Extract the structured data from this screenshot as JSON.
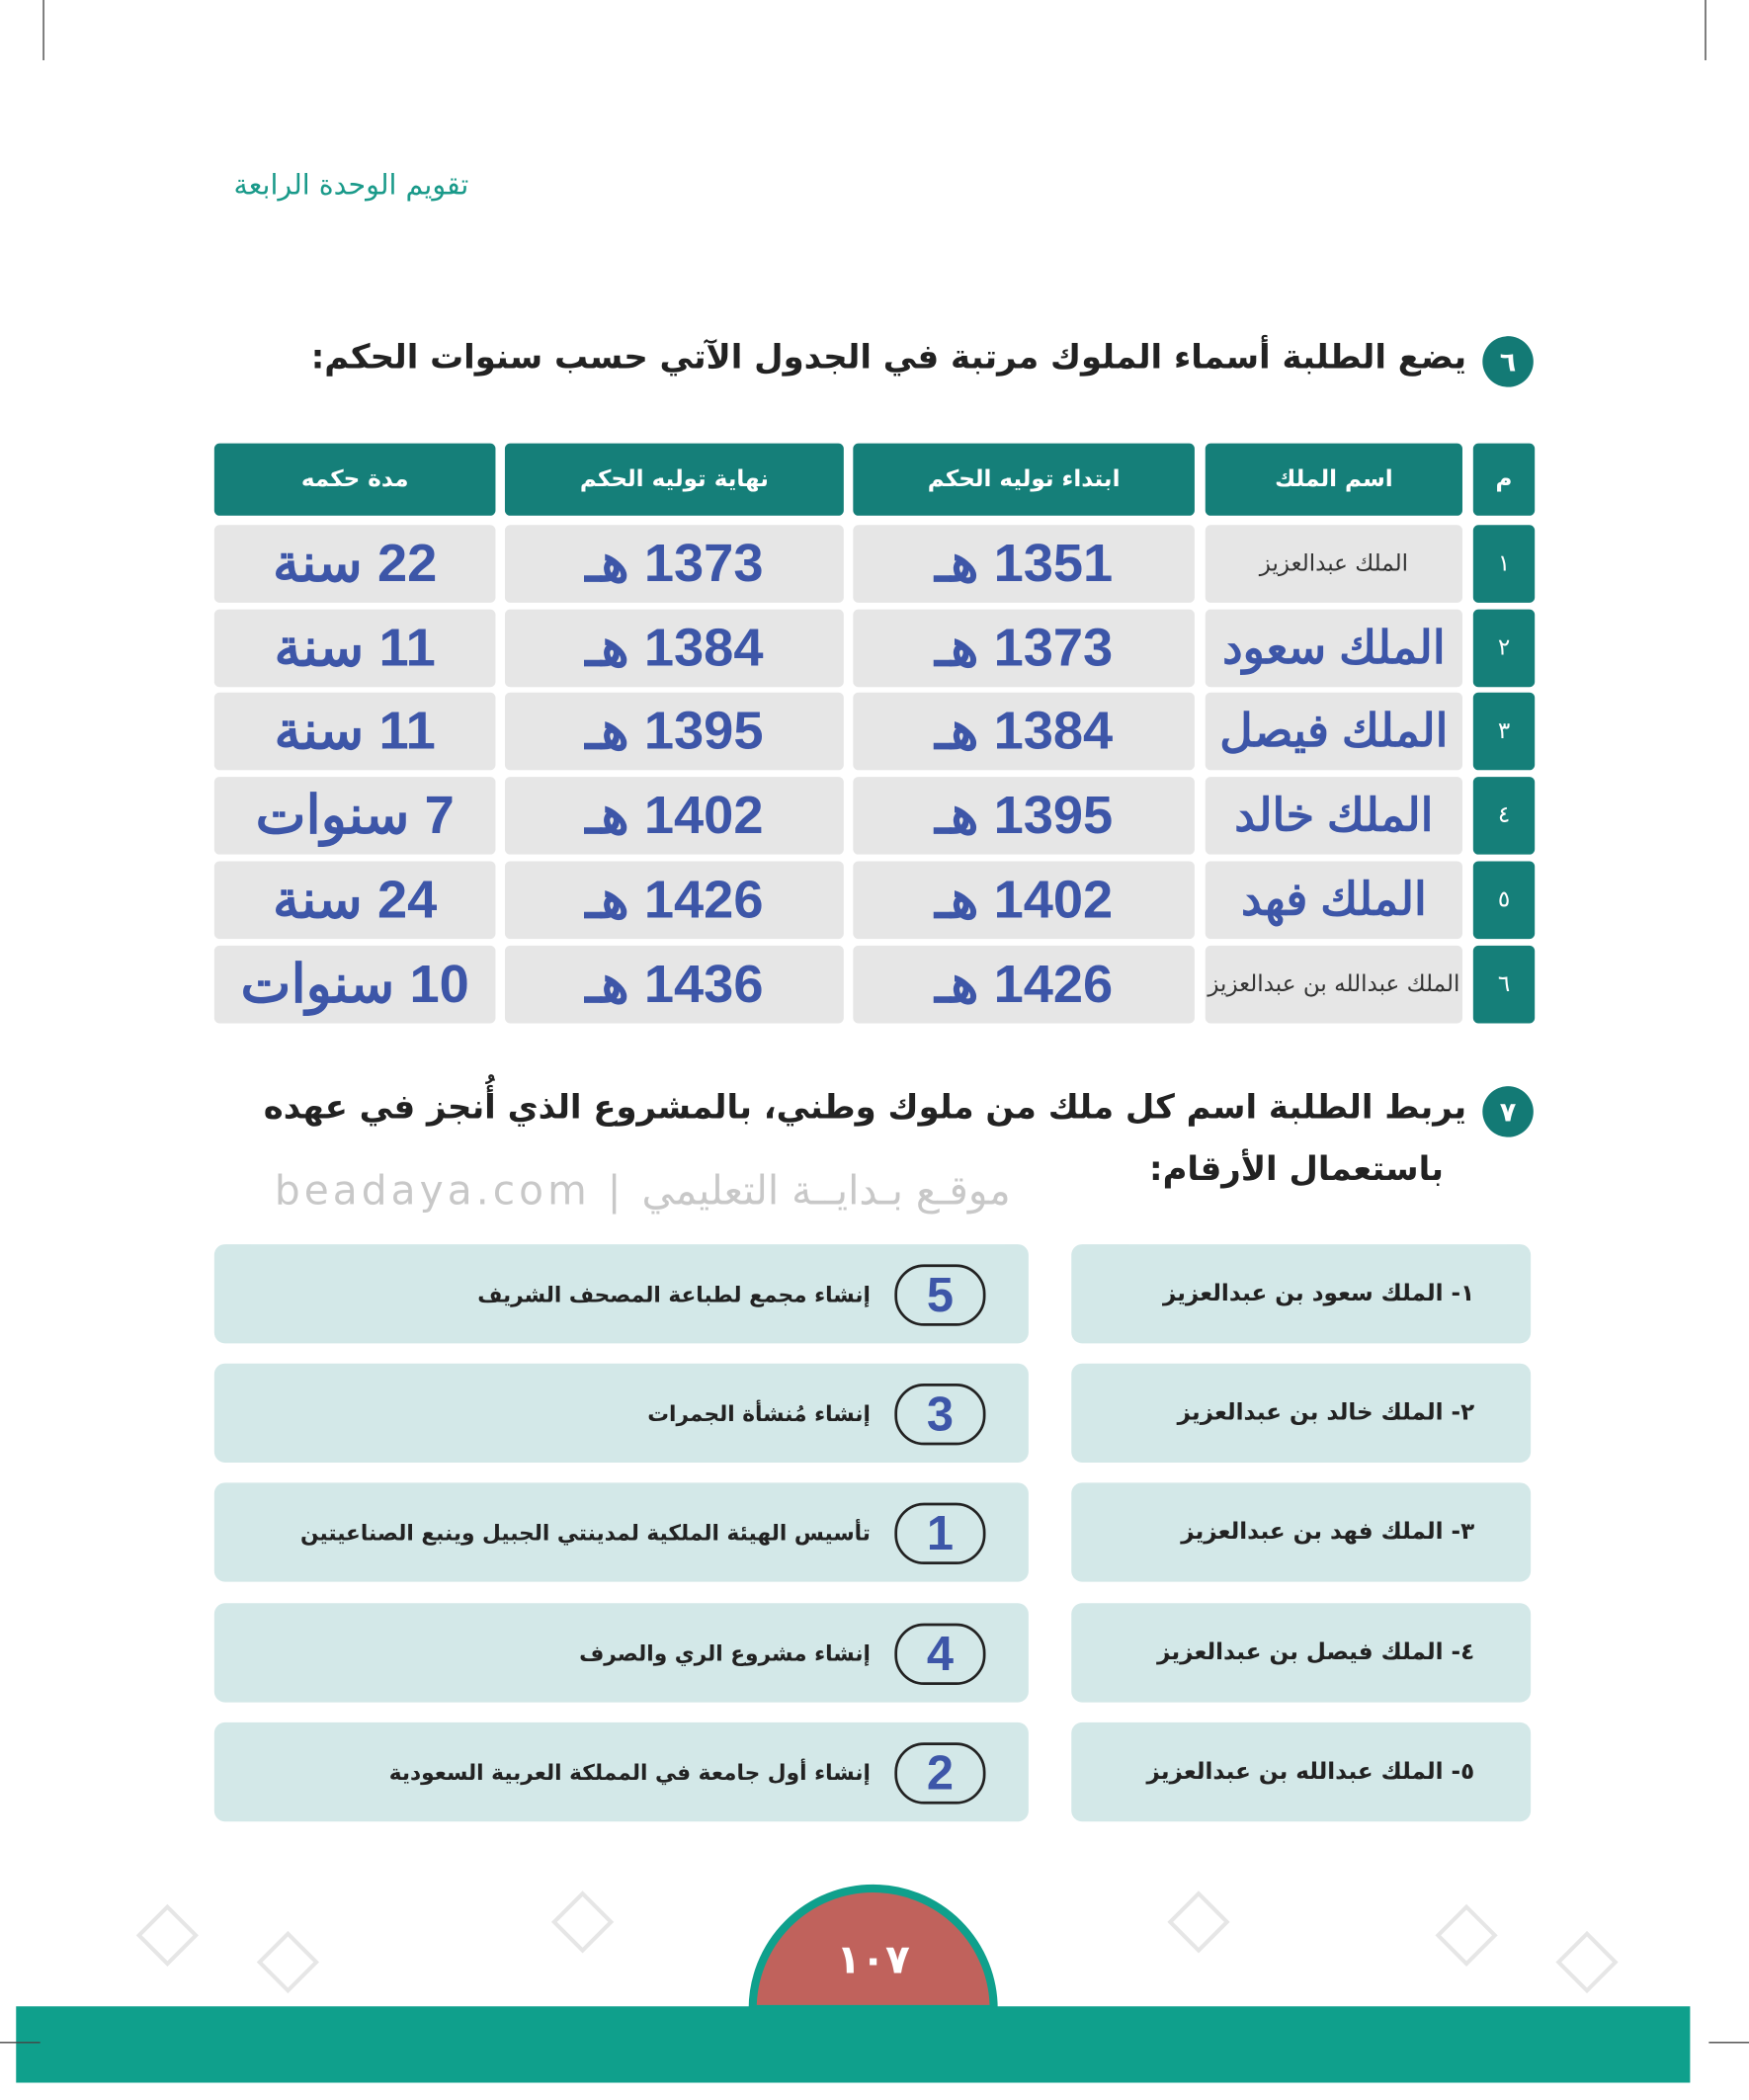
{
  "header": {
    "title": "تقويم الوحدة الرابعة"
  },
  "q6": {
    "number": "٦",
    "text": "يضع الطلبة  أسماء الملوك مرتبة في الجدول الآتي حسب سنوات الحكم:"
  },
  "table": {
    "headers": [
      "م",
      "اسم الملك",
      "ابتداء توليه الحكم",
      "نهاية توليه الحكم",
      "مدة حكمه"
    ],
    "rows": [
      [
        "١",
        "الملك عبدالعزيز",
        "1351 هـ",
        "1373 هـ",
        "22 سنة"
      ],
      [
        "٢",
        "الملك سعود",
        "1373 هـ",
        "1384 هـ",
        "11 سنة"
      ],
      [
        "٣",
        "الملك فيصل",
        "1384 هـ",
        "1395 هـ",
        "11 سنة"
      ],
      [
        "٤",
        "الملك خالد",
        "1395 هـ",
        "1402 هـ",
        "7 سنوات"
      ],
      [
        "٥",
        "الملك فهد",
        "1402 هـ",
        "1426 هـ",
        "24 سنة"
      ],
      [
        "٦",
        "الملك عبدالله بن عبدالعزيز",
        "1426 هـ",
        "1436 هـ",
        "10 سنوات"
      ]
    ]
  },
  "q7": {
    "number": "٧",
    "lines": [
      "يربط الطلبة اسم كل ملك من ملوك وطني، بالمشروع الذي أُنجز في عهده",
      "باستعمال الأرقام:"
    ]
  },
  "watermark": "beadaya.com | موقـع بـدايــة التعليمي",
  "kings": [
    "١- الملك سعود بن عبدالعزيز",
    "٢- الملك خالد  بن عبدالعزيز",
    "٣- الملك فهد بن عبدالعزيز",
    "٤- الملك فيصل بن عبدالعزيز",
    "٥- الملك عبدالله بن عبدالعزيز"
  ],
  "projects": [
    {
      "answer": "5",
      "text": "إنشاء مجمع لطباعة المصحف الشريف"
    },
    {
      "answer": "3",
      "text": "إنشاء مُنشأة الجمرات"
    },
    {
      "answer": "1",
      "text": "تأسيس الهيئة الملكية لمدينتي الجبيل وينبع الصناعيتين"
    },
    {
      "answer": "4",
      "text": "إنشاء مشروع الري والصرف"
    },
    {
      "answer": "2",
      "text": "إنشاء أول جامعة في المملكة العربية السعودية"
    }
  ],
  "page_number": "١٠٧"
}
